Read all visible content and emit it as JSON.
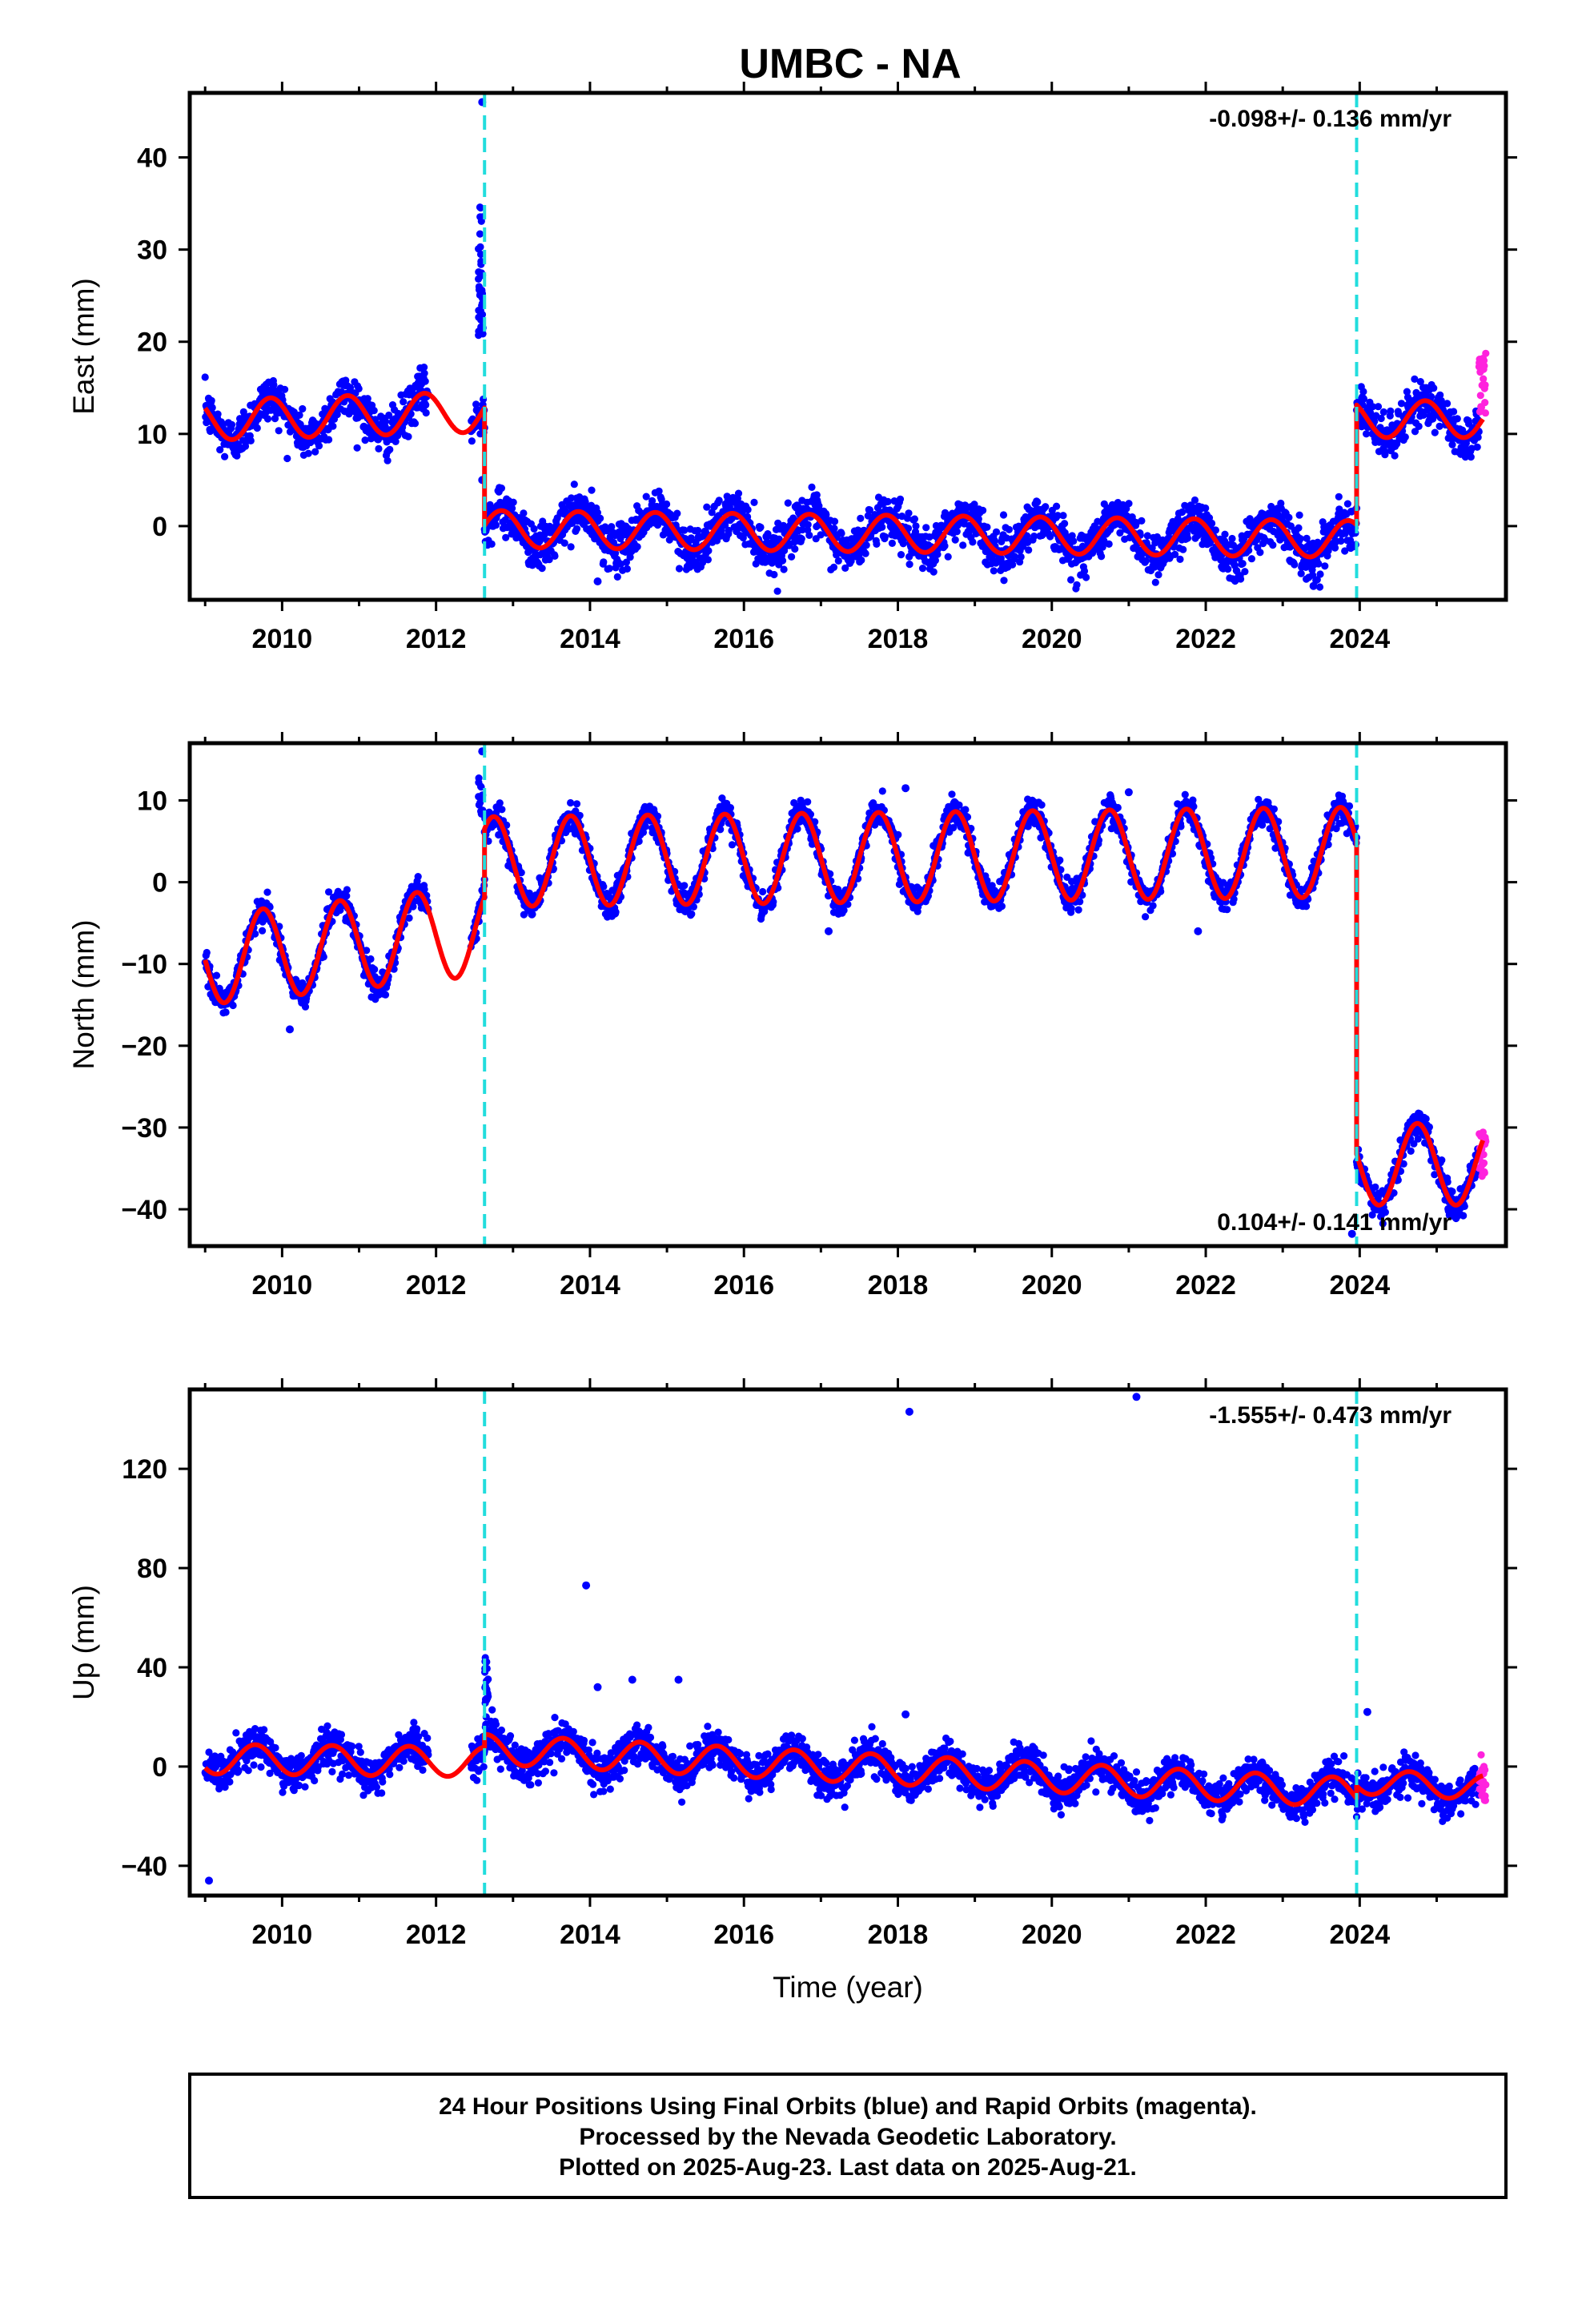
{
  "title": "UMBC - NA",
  "footer": {
    "line1": "24 Hour Positions Using Final Orbits (blue) and Rapid Orbits (magenta).",
    "line2": "Processed by the Nevada Geodetic Laboratory.",
    "line3": "Plotted on 2025-Aug-23. Last data on 2025-Aug-21."
  },
  "colors": {
    "final": "#0000ff",
    "rapid": "#ff22dd",
    "model": "#ff0000",
    "steps": "#22dddd"
  },
  "chart_data": [
    {
      "type": "scatter",
      "ylabel": "East (mm)",
      "xlabel": "",
      "xlim": [
        2008.8,
        2025.9
      ],
      "ylim": [
        -8,
        47
      ],
      "x_ticks": [
        2010,
        2012,
        2014,
        2016,
        2018,
        2020,
        2022,
        2024
      ],
      "y_ticks": [
        0,
        10,
        20,
        30,
        40
      ],
      "step_lines_x": [
        2012.63,
        2023.96
      ],
      "rate": "-0.098+/- 0.136 mm/yr",
      "rate_position": "top-right",
      "model_segments": [
        {
          "t0": 2009.0,
          "t1": 2012.63,
          "offset": 11.5,
          "trend": 0.25,
          "amp": 2.2,
          "phase": 2009.6
        },
        {
          "t0": 2012.63,
          "t1": 2023.96,
          "offset": -0.3,
          "trend": -0.098,
          "amp": 2.0,
          "phase": 2009.6
        },
        {
          "t0": 2023.96,
          "t1": 2025.6,
          "offset": 11.6,
          "trend": 0.0,
          "amp": 2.0,
          "phase": 2009.6
        }
      ],
      "outlier_clusters": [
        {
          "x": 2012.58,
          "y_from": 20,
          "y_to": 35,
          "n": 40
        }
      ],
      "outliers": [
        [
          2012.6,
          46
        ],
        [
          2012.6,
          5
        ],
        [
          2014.1,
          -6
        ],
        [
          2023.4,
          -6.5
        ]
      ],
      "noise": 2.2,
      "rapid_range": [
        2025.55,
        2025.64
      ],
      "rapid_y": [
        12,
        19.5
      ]
    },
    {
      "type": "scatter",
      "ylabel": "North (mm)",
      "xlabel": "",
      "xlim": [
        2008.8,
        2025.9
      ],
      "ylim": [
        -44.5,
        17
      ],
      "x_ticks": [
        2010,
        2012,
        2014,
        2016,
        2018,
        2020,
        2022,
        2024
      ],
      "y_ticks": [
        -40,
        -30,
        -20,
        -10,
        0,
        10
      ],
      "step_lines_x": [
        2012.63,
        2023.96
      ],
      "rate": "0.104+/- 0.141 mm/yr",
      "rate_position": "bottom-right",
      "model_segments": [
        {
          "t0": 2009.0,
          "t1": 2012.63,
          "offset": -9.5,
          "trend": 1.0,
          "amp": 5.5,
          "phase": 2009.5
        },
        {
          "t0": 2012.63,
          "t1": 2023.96,
          "offset": 2.5,
          "trend": 0.104,
          "amp": 5.5,
          "phase": 2009.5
        },
        {
          "t0": 2023.96,
          "t1": 2025.6,
          "offset": -34.5,
          "trend": 0.0,
          "amp": 5.0,
          "phase": 2009.5
        }
      ],
      "outlier_clusters": [
        {
          "x": 2012.58,
          "y_from": 8,
          "y_to": 13,
          "n": 15
        }
      ],
      "outliers": [
        [
          2012.6,
          16
        ],
        [
          2010.1,
          -18
        ],
        [
          2017.1,
          -6
        ],
        [
          2021.0,
          11
        ],
        [
          2021.9,
          -6
        ],
        [
          2018.1,
          11.5
        ],
        [
          2023.9,
          -43
        ]
      ],
      "noise": 1.6,
      "rapid_range": [
        2025.55,
        2025.64
      ],
      "rapid_y": [
        -36,
        -30
      ]
    },
    {
      "type": "scatter",
      "ylabel": "Up (mm)",
      "xlabel": "Time (year)",
      "xlim": [
        2008.8,
        2025.9
      ],
      "ylim": [
        -52,
        152
      ],
      "x_ticks": [
        2010,
        2012,
        2014,
        2016,
        2018,
        2020,
        2022,
        2024
      ],
      "y_ticks": [
        -40,
        0,
        40,
        80,
        120
      ],
      "step_lines_x": [
        2012.63,
        2023.96
      ],
      "rate": "-1.555+/- 0.473 mm/yr",
      "rate_position": "top-right",
      "model_segments": [
        {
          "t0": 2009.0,
          "t1": 2012.63,
          "offset": 3.0,
          "trend": -0.3,
          "amp": 6.0,
          "phase": 2009.4
        },
        {
          "t0": 2012.63,
          "t1": 2023.96,
          "offset": 7.0,
          "trend": -1.555,
          "amp": 6.0,
          "phase": 2009.4
        },
        {
          "t0": 2023.96,
          "t1": 2025.6,
          "offset": -6.0,
          "trend": -1.5,
          "amp": 5.0,
          "phase": 2009.4
        }
      ],
      "outlier_clusters": [
        {
          "x": 2012.65,
          "y_from": 25,
          "y_to": 44,
          "n": 20
        }
      ],
      "outliers": [
        [
          2009.05,
          -46
        ],
        [
          2018.15,
          143
        ],
        [
          2021.1,
          149
        ],
        [
          2013.95,
          73
        ],
        [
          2014.55,
          35
        ],
        [
          2015.15,
          35
        ],
        [
          2014.1,
          32
        ],
        [
          2024.1,
          22
        ],
        [
          2018.1,
          21
        ]
      ],
      "noise": 6.5,
      "rapid_range": [
        2025.55,
        2025.64
      ],
      "rapid_y": [
        -14,
        8
      ]
    }
  ]
}
